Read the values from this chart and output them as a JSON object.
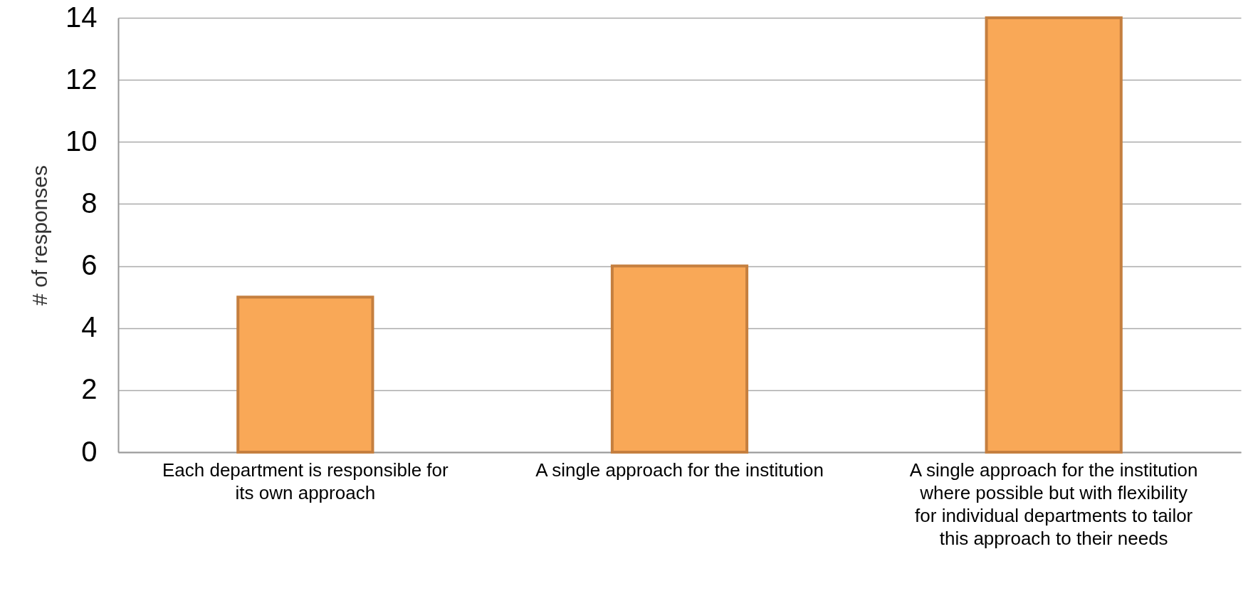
{
  "chart_data": {
    "type": "bar",
    "ylabel": "# of responses",
    "categories": [
      "Each department is responsible for its own approach",
      "A single approach for the institution",
      "A single approach for the institution where possible but with flexibility for individual departments to tailor this approach to their needs"
    ],
    "values": [
      5,
      6,
      14
    ],
    "color": "#f9a857",
    "ylim": [
      0,
      14
    ],
    "yticks": [
      0,
      2,
      4,
      6,
      8,
      10,
      12,
      14
    ],
    "grid": "y"
  }
}
